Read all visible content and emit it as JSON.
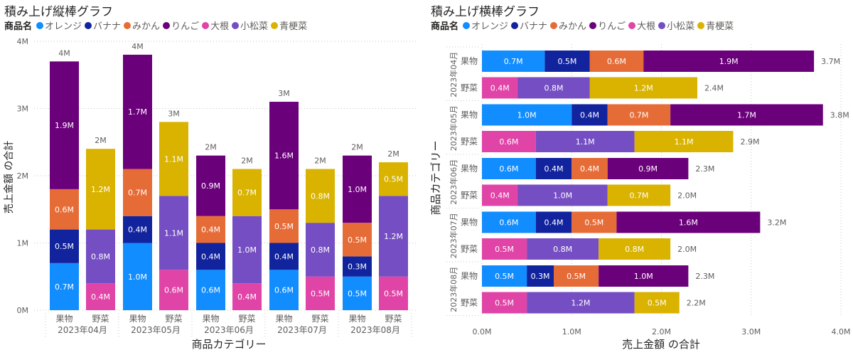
{
  "colors": {
    "オレンジ": "#118DFF",
    "バナナ": "#12239E",
    "みかん": "#E66C37",
    "りんご": "#6B007B",
    "大根": "#E044A7",
    "小松菜": "#744EC2",
    "青梗菜": "#D9B300"
  },
  "legend_title": "商品名",
  "chart_data": [
    {
      "type": "bar",
      "orientation": "vertical",
      "stacked": true,
      "title": "積み上げ縦棒グラフ",
      "legend_title": "商品名",
      "legend_position": "top-left",
      "xlabel": "商品カテゴリー",
      "ylabel": "売上金額 の合計",
      "ylim": [
        0,
        4
      ],
      "yticks": [
        "0M",
        "1M",
        "2M",
        "3M",
        "4M"
      ],
      "grid": true,
      "groups": [
        "2023年04月",
        "2023年05月",
        "2023年06月",
        "2023年07月",
        "2023年08月"
      ],
      "subcategories": [
        "果物",
        "野菜"
      ],
      "series_names": [
        "オレンジ",
        "バナナ",
        "みかん",
        "りんご",
        "大根",
        "小松菜",
        "青梗菜"
      ],
      "bars": [
        {
          "group": "2023年04月",
          "category": "果物",
          "total_label": "4M",
          "segments": [
            [
              "オレンジ",
              0.7,
              "0.7M"
            ],
            [
              "バナナ",
              0.5,
              "0.5M"
            ],
            [
              "みかん",
              0.6,
              "0.6M"
            ],
            [
              "りんご",
              1.9,
              "1.9M"
            ]
          ]
        },
        {
          "group": "2023年04月",
          "category": "野菜",
          "total_label": "2M",
          "segments": [
            [
              "大根",
              0.4,
              "0.4M"
            ],
            [
              "小松菜",
              0.8,
              "0.8M"
            ],
            [
              "青梗菜",
              1.2,
              "1.2M"
            ]
          ]
        },
        {
          "group": "2023年05月",
          "category": "果物",
          "total_label": "4M",
          "segments": [
            [
              "オレンジ",
              1.0,
              "1.0M"
            ],
            [
              "バナナ",
              0.4,
              "0.4M"
            ],
            [
              "みかん",
              0.7,
              "0.7M"
            ],
            [
              "りんご",
              1.7,
              "1.7M"
            ]
          ]
        },
        {
          "group": "2023年05月",
          "category": "野菜",
          "total_label": "3M",
          "segments": [
            [
              "大根",
              0.6,
              "0.6M"
            ],
            [
              "小松菜",
              1.1,
              "1.1M"
            ],
            [
              "青梗菜",
              1.1,
              "1.1M"
            ]
          ]
        },
        {
          "group": "2023年06月",
          "category": "果物",
          "total_label": "2M",
          "segments": [
            [
              "オレンジ",
              0.6,
              "0.6M"
            ],
            [
              "バナナ",
              0.4,
              "0.4M"
            ],
            [
              "みかん",
              0.4,
              "0.4M"
            ],
            [
              "りんご",
              0.9,
              "0.9M"
            ]
          ]
        },
        {
          "group": "2023年06月",
          "category": "野菜",
          "total_label": "2M",
          "segments": [
            [
              "大根",
              0.4,
              "0.4M"
            ],
            [
              "小松菜",
              1.0,
              "1.0M"
            ],
            [
              "青梗菜",
              0.7,
              "0.7M"
            ]
          ]
        },
        {
          "group": "2023年07月",
          "category": "果物",
          "total_label": "3M",
          "segments": [
            [
              "オレンジ",
              0.6,
              "0.6M"
            ],
            [
              "バナナ",
              0.4,
              "0.4M"
            ],
            [
              "みかん",
              0.5,
              "0.5M"
            ],
            [
              "りんご",
              1.6,
              "1.6M"
            ]
          ]
        },
        {
          "group": "2023年07月",
          "category": "野菜",
          "total_label": "2M",
          "segments": [
            [
              "大根",
              0.5,
              "0.5M"
            ],
            [
              "小松菜",
              0.8,
              "0.8M"
            ],
            [
              "青梗菜",
              0.8,
              "0.8M"
            ]
          ]
        },
        {
          "group": "2023年08月",
          "category": "果物",
          "total_label": "2M",
          "segments": [
            [
              "オレンジ",
              0.5,
              "0.5M"
            ],
            [
              "バナナ",
              0.3,
              "0.3M"
            ],
            [
              "みかん",
              0.5,
              "0.5M"
            ],
            [
              "りんご",
              1.0,
              "1.0M"
            ]
          ]
        },
        {
          "group": "2023年08月",
          "category": "野菜",
          "total_label": "2M",
          "segments": [
            [
              "大根",
              0.5,
              "0.5M"
            ],
            [
              "小松菜",
              1.2,
              "1.2M"
            ],
            [
              "青梗菜",
              0.5,
              "0.5M"
            ]
          ]
        }
      ]
    },
    {
      "type": "bar",
      "orientation": "horizontal",
      "stacked": true,
      "title": "積み上げ横棒グラフ",
      "legend_title": "商品名",
      "legend_position": "top-left",
      "xlabel": "売上金額 の合計",
      "ylabel": "商品カテゴリー",
      "xlim": [
        0,
        4
      ],
      "xticks": [
        "0.0M",
        "1.0M",
        "2.0M",
        "3.0M",
        "4.0M"
      ],
      "grid": true,
      "groups": [
        "2023年04月",
        "2023年05月",
        "2023年06月",
        "2023年07月",
        "2023年08月"
      ],
      "subcategories": [
        "果物",
        "野菜"
      ],
      "series_names": [
        "オレンジ",
        "バナナ",
        "みかん",
        "りんご",
        "大根",
        "小松菜",
        "青梗菜"
      ],
      "bars": [
        {
          "group": "2023年04月",
          "category": "果物",
          "total_label": "3.7M",
          "segments": [
            [
              "オレンジ",
              0.7,
              "0.7M"
            ],
            [
              "バナナ",
              0.5,
              "0.5M"
            ],
            [
              "みかん",
              0.6,
              "0.6M"
            ],
            [
              "りんご",
              1.9,
              "1.9M"
            ]
          ]
        },
        {
          "group": "2023年04月",
          "category": "野菜",
          "total_label": "2.4M",
          "segments": [
            [
              "大根",
              0.4,
              "0.4M"
            ],
            [
              "小松菜",
              0.8,
              "0.8M"
            ],
            [
              "青梗菜",
              1.2,
              "1.2M"
            ]
          ]
        },
        {
          "group": "2023年05月",
          "category": "果物",
          "total_label": "3.8M",
          "segments": [
            [
              "オレンジ",
              1.0,
              "1.0M"
            ],
            [
              "バナナ",
              0.4,
              "0.4M"
            ],
            [
              "みかん",
              0.7,
              "0.7M"
            ],
            [
              "りんご",
              1.7,
              "1.7M"
            ]
          ]
        },
        {
          "group": "2023年05月",
          "category": "野菜",
          "total_label": "2.9M",
          "segments": [
            [
              "大根",
              0.6,
              "0.6M"
            ],
            [
              "小松菜",
              1.1,
              "1.1M"
            ],
            [
              "青梗菜",
              1.1,
              "1.1M"
            ]
          ]
        },
        {
          "group": "2023年06月",
          "category": "果物",
          "total_label": "2.3M",
          "segments": [
            [
              "オレンジ",
              0.6,
              "0.6M"
            ],
            [
              "バナナ",
              0.4,
              "0.4M"
            ],
            [
              "みかん",
              0.4,
              "0.4M"
            ],
            [
              "りんご",
              0.9,
              "0.9M"
            ]
          ]
        },
        {
          "group": "2023年06月",
          "category": "野菜",
          "total_label": "2.0M",
          "segments": [
            [
              "大根",
              0.4,
              "0.4M"
            ],
            [
              "小松菜",
              1.0,
              "1.0M"
            ],
            [
              "青梗菜",
              0.7,
              "0.7M"
            ]
          ]
        },
        {
          "group": "2023年07月",
          "category": "果物",
          "total_label": "3.2M",
          "segments": [
            [
              "オレンジ",
              0.6,
              "0.6M"
            ],
            [
              "バナナ",
              0.4,
              "0.4M"
            ],
            [
              "みかん",
              0.5,
              "0.5M"
            ],
            [
              "りんご",
              1.6,
              "1.6M"
            ]
          ]
        },
        {
          "group": "2023年07月",
          "category": "野菜",
          "total_label": "2.0M",
          "segments": [
            [
              "大根",
              0.5,
              "0.5M"
            ],
            [
              "小松菜",
              0.8,
              "0.8M"
            ],
            [
              "青梗菜",
              0.8,
              "0.8M"
            ]
          ]
        },
        {
          "group": "2023年08月",
          "category": "果物",
          "total_label": "2.3M",
          "segments": [
            [
              "オレンジ",
              0.5,
              "0.5M"
            ],
            [
              "バナナ",
              0.3,
              "0.3M"
            ],
            [
              "みかん",
              0.5,
              "0.5M"
            ],
            [
              "りんご",
              1.0,
              "1.0M"
            ]
          ]
        },
        {
          "group": "2023年08月",
          "category": "野菜",
          "total_label": "2.2M",
          "segments": [
            [
              "大根",
              0.5,
              "0.5M"
            ],
            [
              "小松菜",
              1.2,
              "1.2M"
            ],
            [
              "青梗菜",
              0.5,
              "0.5M"
            ]
          ]
        }
      ]
    }
  ]
}
